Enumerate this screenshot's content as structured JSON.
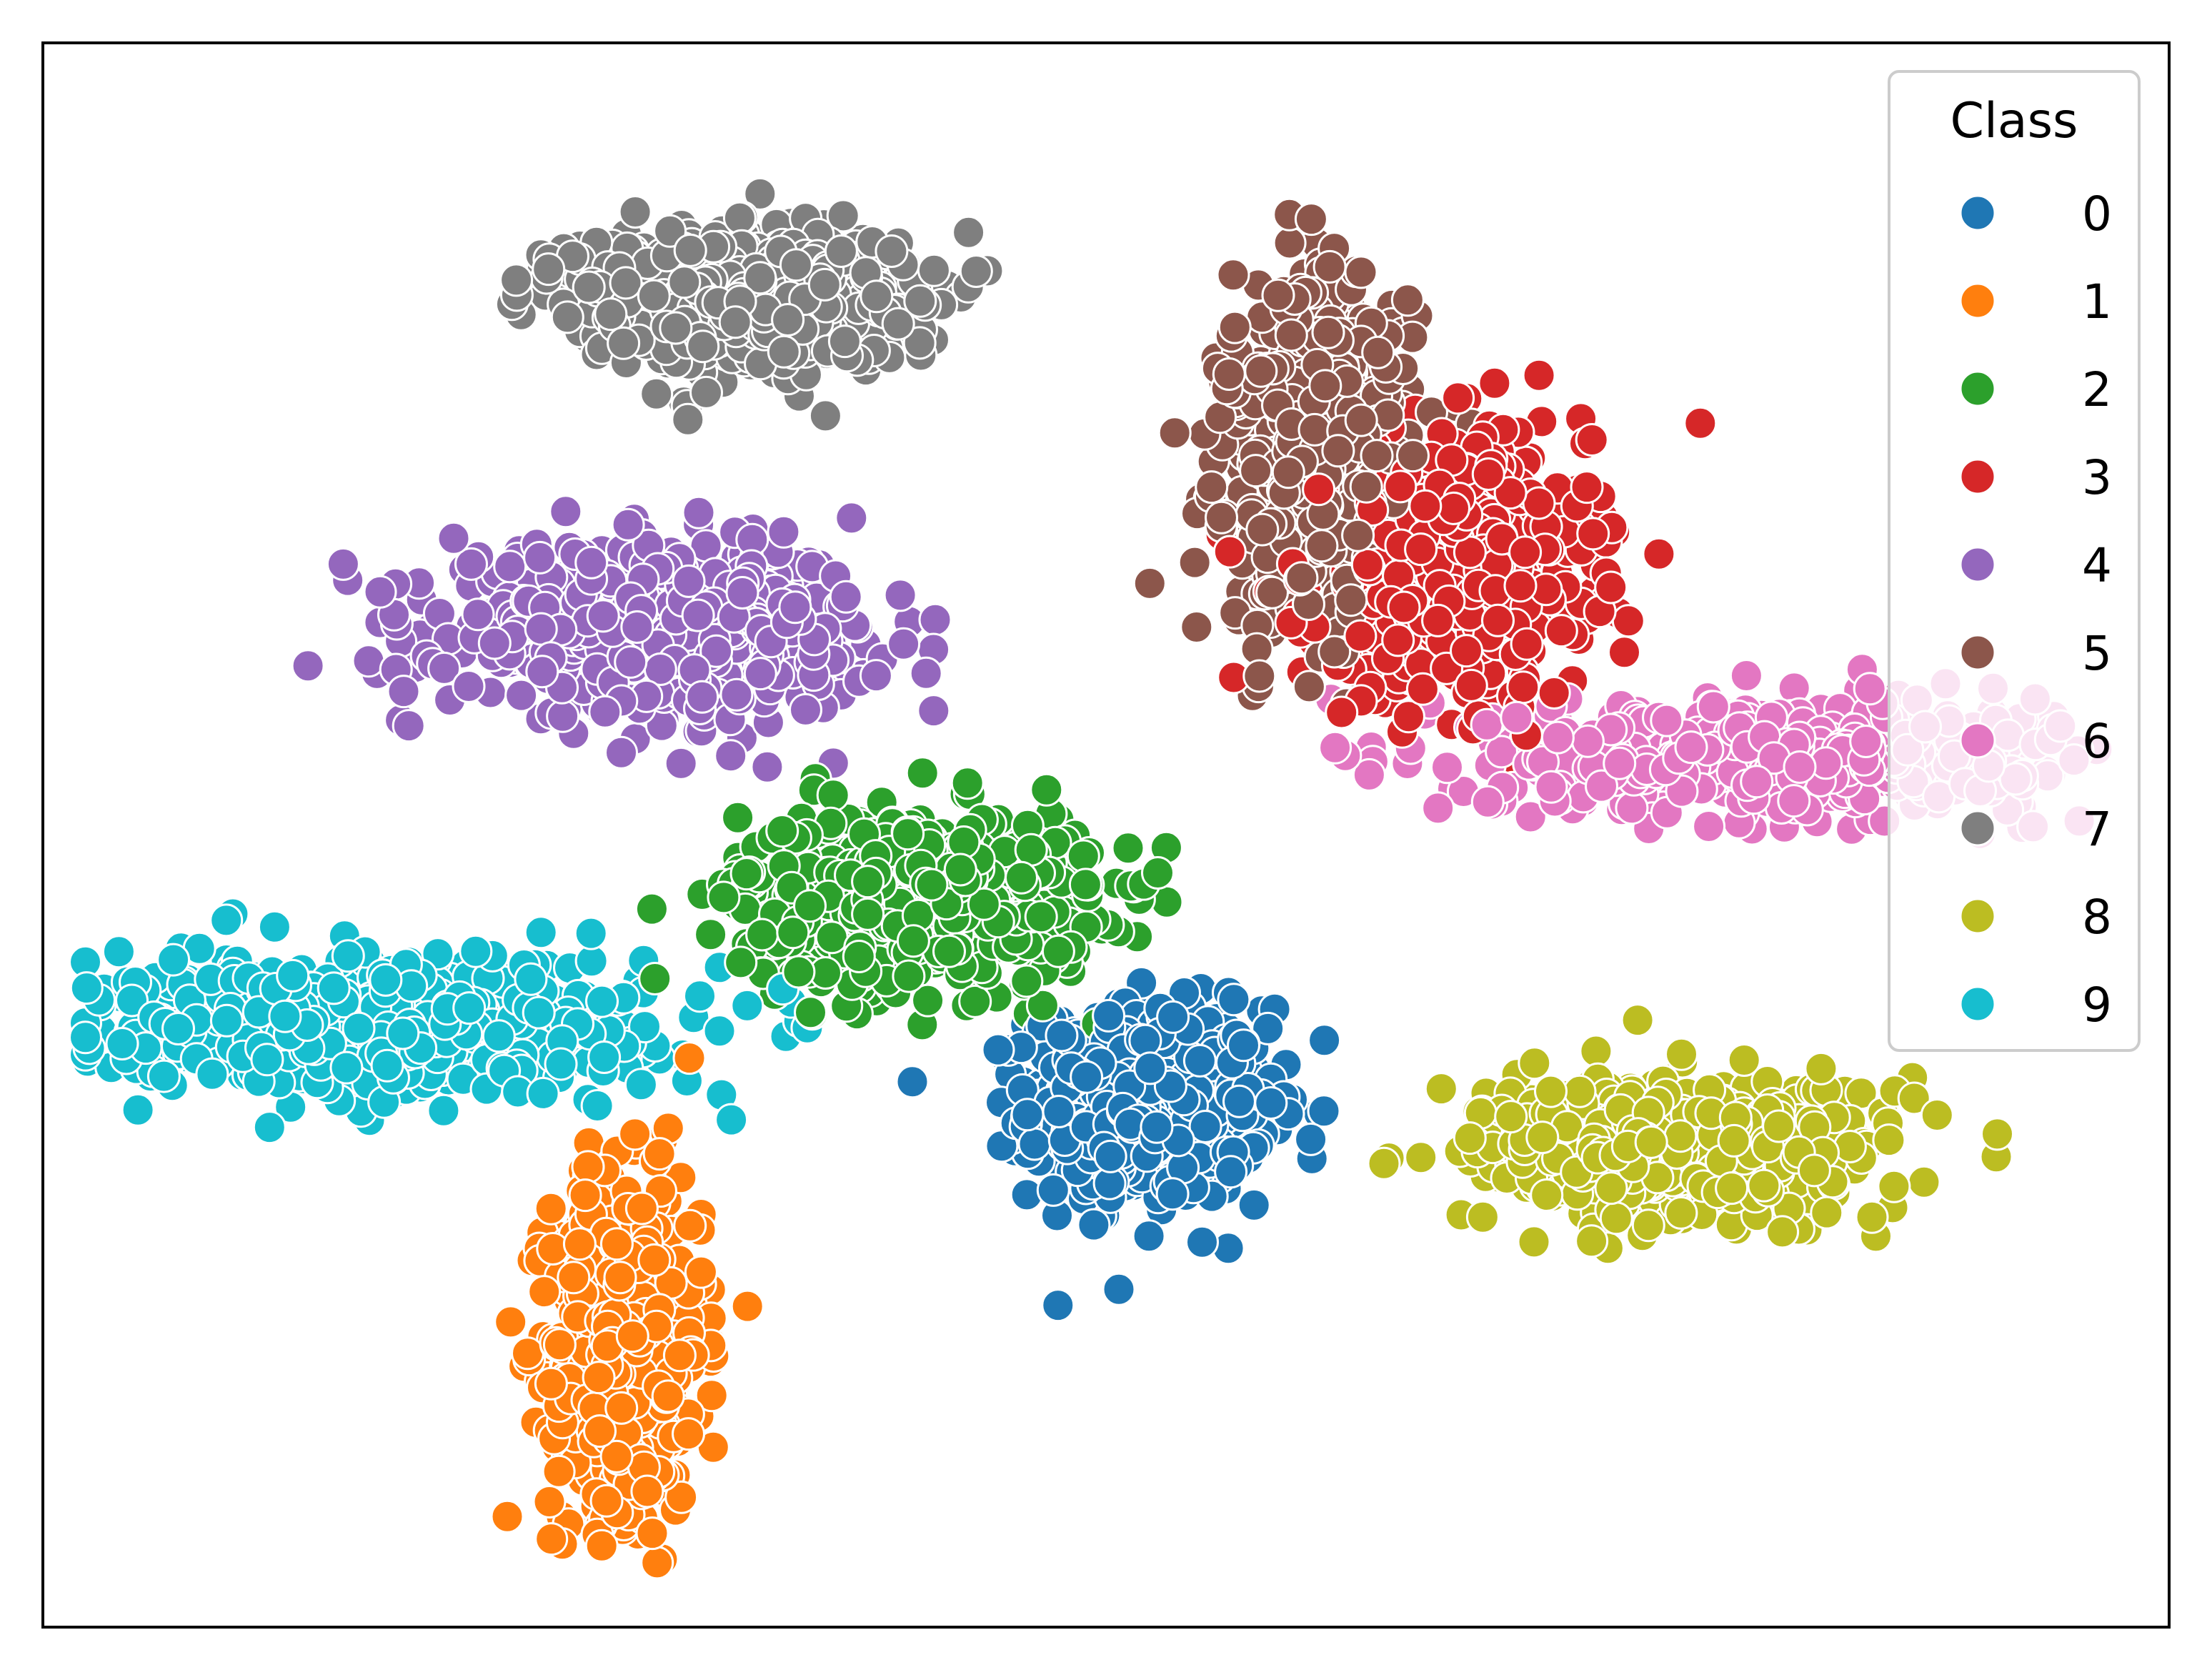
{
  "chart_data": {
    "type": "scatter",
    "title": "",
    "xlabel": "",
    "ylabel": "",
    "grid": false,
    "ticks": false,
    "legend": {
      "title": "Class",
      "placement": "top-right",
      "entries": [
        "0",
        "1",
        "2",
        "3",
        "4",
        "5",
        "6",
        "7",
        "8",
        "9"
      ]
    },
    "colors": {
      "0": "#1f77b4",
      "1": "#ff7f0e",
      "2": "#2ca02c",
      "3": "#d62728",
      "4": "#9467bd",
      "5": "#8c564b",
      "6": "#e377c2",
      "7": "#7f7f7f",
      "8": "#bcbd22",
      "9": "#17becf"
    },
    "xlim": [
      0,
      100
    ],
    "ylim": [
      0,
      100
    ],
    "series": [
      {
        "name": "0",
        "center": [
          52,
          33
        ],
        "spread": [
          5.0,
          5.5
        ],
        "points": 700
      },
      {
        "name": "1",
        "center": [
          27.5,
          18
        ],
        "spread": [
          3.2,
          9.5
        ],
        "points": 700
      },
      {
        "name": "2",
        "center": [
          41,
          46
        ],
        "spread": [
          7.5,
          5.0
        ],
        "points": 700
      },
      {
        "name": "3",
        "center": [
          66,
          67
        ],
        "spread": [
          6.0,
          7.5
        ],
        "points": 700
      },
      {
        "name": "4",
        "center": [
          29,
          63
        ],
        "spread": [
          9.0,
          4.5
        ],
        "points": 700
      },
      {
        "name": "5",
        "center": [
          60,
          74
        ],
        "spread": [
          4.0,
          10.0
        ],
        "points": 700
      },
      {
        "name": "6",
        "center": [
          81,
          55
        ],
        "spread": [
          11.5,
          3.0
        ],
        "points": 700
      },
      {
        "name": "7",
        "center": [
          33,
          84
        ],
        "spread": [
          7.0,
          4.0
        ],
        "points": 700
      },
      {
        "name": "8",
        "center": [
          77,
          30
        ],
        "spread": [
          8.5,
          4.0
        ],
        "points": 700
      },
      {
        "name": "9",
        "center": [
          16,
          38
        ],
        "spread": [
          11.0,
          3.8
        ],
        "points": 700
      }
    ]
  }
}
